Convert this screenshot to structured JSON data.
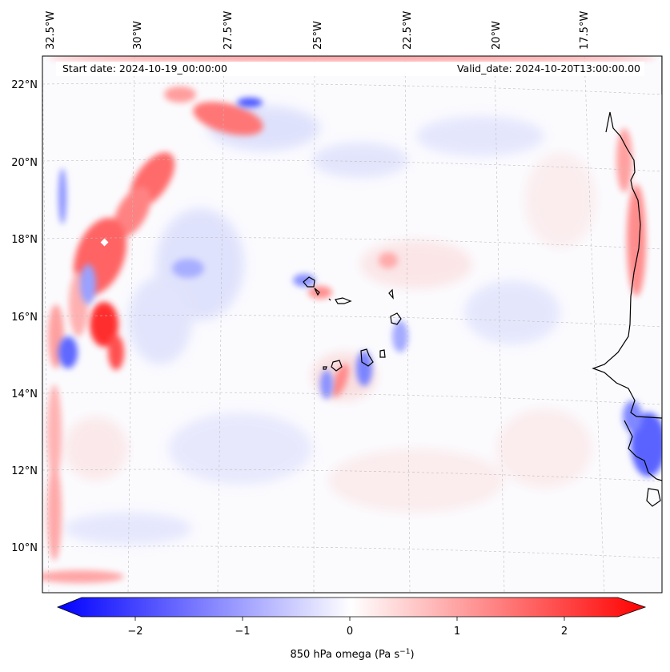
{
  "header": {
    "start_date": "Start date: 2024-10-19_00:00:00",
    "valid_date": "Valid_date: 2024-10-20T13:00:00.00"
  },
  "map": {
    "lon_labels": [
      "32.5°W",
      "30°W",
      "27.5°W",
      "25°W",
      "22.5°W",
      "20°W",
      "17.5°W"
    ],
    "lat_labels": [
      "22°N",
      "20°N",
      "18°N",
      "16°N",
      "14°N",
      "12°N",
      "10°N"
    ],
    "field": "850 hPa omega",
    "colors": {
      "positive": "#ff0000",
      "negative": "#0000ff",
      "neutral": "#ffffff",
      "coast": "#000000",
      "grid": "#bbbbbb"
    }
  },
  "colorbar": {
    "ticks": [
      "−2",
      "−1",
      "0",
      "1",
      "2"
    ],
    "tick_values": [
      -2,
      -1,
      0,
      1,
      2
    ],
    "range": [
      -2.5,
      2.5
    ],
    "label": "850 hPa omega (Pa s",
    "label_exp": "−1",
    "label_close": ")"
  }
}
